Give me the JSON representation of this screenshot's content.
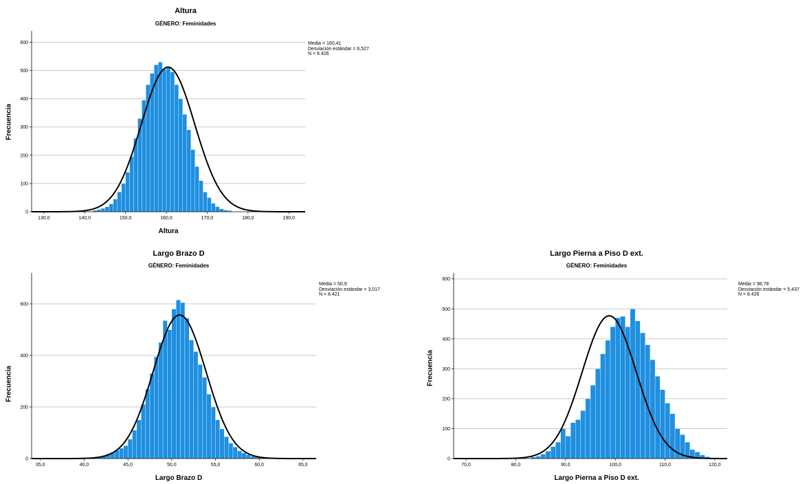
{
  "chart_data": [
    {
      "type": "bar",
      "title": "Altura",
      "subtitle": "GÉNERO: Feminidades",
      "xlabel": "Altura",
      "ylabel": "Frecuencia",
      "ylim": [
        0,
        640
      ],
      "yticks": [
        "0",
        "100",
        "200",
        "300",
        "400",
        "500",
        "600"
      ],
      "xlim": [
        127,
        194
      ],
      "xticks": [
        "130,0",
        "140,0",
        "150,0",
        "160,0",
        "170,0",
        "180,0",
        "190,0"
      ],
      "bin_start": 142,
      "bin_width": 1,
      "values": [
        5,
        8,
        12,
        18,
        28,
        45,
        70,
        100,
        140,
        195,
        260,
        330,
        395,
        450,
        490,
        520,
        530,
        505,
        510,
        495,
        450,
        400,
        345,
        290,
        220,
        160,
        110,
        70,
        50,
        30,
        18,
        10,
        6,
        4
      ],
      "normal_curve": {
        "mean": 160.41,
        "sd": 6.527,
        "peak": 512
      },
      "stats": [
        "Media = 160,41",
        "Desviación estándar = 6,527",
        "N = 8.426"
      ],
      "bar_color": "#1f8fe0",
      "grid": true
    },
    {
      "type": "bar",
      "title": "Largo Brazo D",
      "subtitle": "GÉNERO: Feminidades",
      "xlabel": "Largo Brazo D",
      "ylabel": "Frecuencia",
      "ylim": [
        0,
        720
      ],
      "yticks": [
        "0",
        "200",
        "400",
        "600"
      ],
      "xlim": [
        34,
        66.5
      ],
      "xticks": [
        "35,0",
        "40,0",
        "45,0",
        "50,0",
        "55,0",
        "60,0",
        "65,0"
      ],
      "bin_start": 40.5,
      "bin_width": 0.5,
      "values": [
        3,
        5,
        8,
        12,
        18,
        25,
        32,
        40,
        50,
        75,
        110,
        150,
        210,
        270,
        330,
        395,
        450,
        535,
        500,
        580,
        615,
        605,
        545,
        460,
        415,
        365,
        315,
        250,
        200,
        150,
        115,
        85,
        60,
        45,
        30,
        22,
        15,
        9,
        6,
        3
      ],
      "normal_curve": {
        "mean": 50.9,
        "sd": 3.017,
        "peak": 557
      },
      "stats": [
        "Media = 50,9",
        "Desviación estándar = 3,017",
        "N = 8.421"
      ],
      "bar_color": "#1f8fe0",
      "grid": true
    },
    {
      "type": "bar",
      "title": "Largo Pierna a Piso D ext.",
      "subtitle": "GÉNERO: Feminidades",
      "xlabel": "Largo Pierna a Piso D ext.",
      "ylabel": "Frecuencia",
      "ylim": [
        0,
        620
      ],
      "yticks": [
        "0",
        "100",
        "200",
        "300",
        "400",
        "500",
        "600"
      ],
      "xlim": [
        67.5,
        122.5
      ],
      "xticks": [
        "70,0",
        "80,0",
        "90,0",
        "100,0",
        "110,0",
        "120,0"
      ],
      "bin_start": 83,
      "bin_width": 1,
      "values": [
        5,
        8,
        15,
        25,
        40,
        55,
        100,
        75,
        120,
        130,
        160,
        200,
        245,
        300,
        350,
        395,
        440,
        470,
        475,
        440,
        500,
        460,
        420,
        380,
        330,
        275,
        230,
        185,
        150,
        100,
        80,
        55,
        30,
        22,
        12,
        6
      ],
      "normal_curve": {
        "mean": 98.78,
        "sd": 5.437,
        "peak": 477
      },
      "stats": [
        "Media = 98,78",
        "Desviación estándar = 5,437",
        "N = 8.426"
      ],
      "bar_color": "#1f8fe0",
      "grid": true
    }
  ]
}
